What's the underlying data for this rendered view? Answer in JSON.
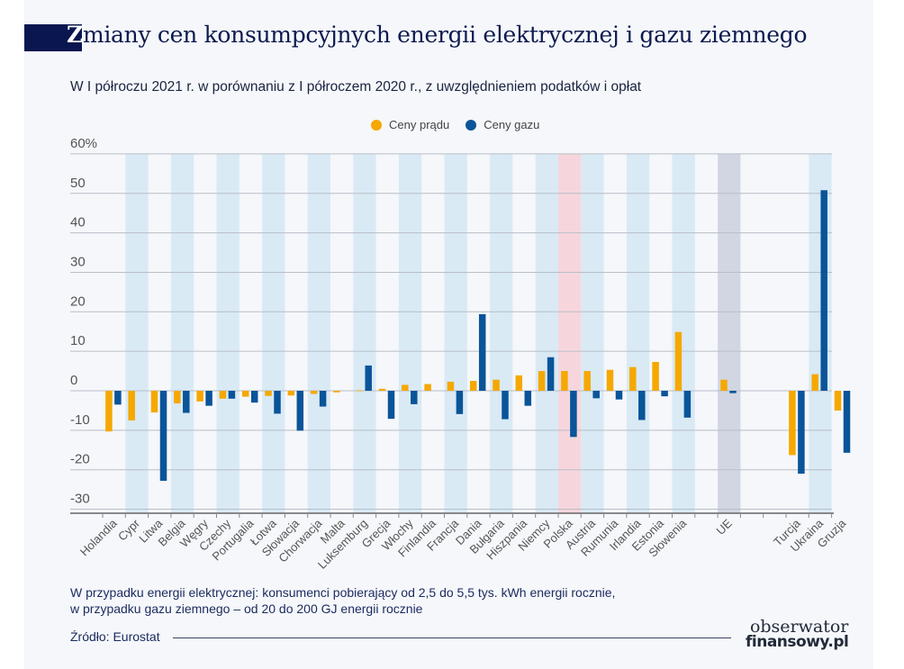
{
  "header": {
    "title_first_letter": "Z",
    "title_rest": "miany cen konsumpcyjnych energii elektrycznej i gazu ziemnego",
    "subtitle": "W I półroczu 2021 r. w porównaniu z I półroczem 2020 r., z uwzględnieniem podatków i opłat"
  },
  "footer": {
    "note_line1": "W przypadku energii elektrycznej: konsumenci pobierający od 2,5 do 5,5 tys. kWh energii rocznie,",
    "note_line2": "w przypadku gazu ziemnego – od 20 do 200 GJ energii rocznie",
    "source": "Źródło: Eurostat",
    "logo_line1": "obserwator",
    "logo_line2": "finansowy.pl"
  },
  "chart_data": {
    "type": "bar",
    "title": "Zmiany cen konsumpcyjnych energii elektrycznej i gazu ziemnego",
    "subtitle": "W I półroczu 2021 r. w porównaniu z I półroczem 2020 r., z uwzględnieniem podatków i opłat",
    "legend_position": "top-center",
    "grid": true,
    "ylim": [
      -30,
      60
    ],
    "yticks": [
      -30,
      -20,
      -10,
      0,
      10,
      20,
      30,
      40,
      50,
      60
    ],
    "ytick_labels": [
      "-30",
      "-20",
      "-10",
      "0",
      "10",
      "20",
      "30",
      "40",
      "50",
      "60%"
    ],
    "categories": [
      "Holandia",
      "Cypr",
      "Litwa",
      "Belgia",
      "Węgry",
      "Czechy",
      "Portugalia",
      "Łotwa",
      "Słowacja",
      "Chorwacja",
      "Malta",
      "Luksemburg",
      "Grecja",
      "Włochy",
      "Finlandia",
      "Francja",
      "Dania",
      "Bułgaria",
      "Hiszpania",
      "Niemcy",
      "Polska",
      "Austria",
      "Rumunia",
      "Irlandia",
      "Estonia",
      "Słowenia",
      "UE",
      "Turcja",
      "Ukraina",
      "Gruzja"
    ],
    "series": [
      {
        "name": "Ceny prądu",
        "color": "#f5a800",
        "values": [
          -10.3,
          -7.5,
          -5.5,
          -3.2,
          -2.7,
          -2.0,
          -1.5,
          -1.3,
          -1.2,
          -0.8,
          -0.4,
          0.1,
          0.5,
          1.5,
          1.7,
          2.3,
          2.5,
          2.8,
          3.9,
          5.0,
          5.0,
          5.0,
          5.3,
          6.0,
          7.3,
          14.9,
          2.8,
          -16.3,
          4.2,
          -5.0
        ]
      },
      {
        "name": "Ceny gazu",
        "color": "#0a5499",
        "values": [
          -3.5,
          null,
          -22.8,
          -5.6,
          -3.8,
          -2.0,
          -3.0,
          -5.8,
          -10.1,
          -4.0,
          null,
          6.4,
          -7.1,
          -3.4,
          null,
          -5.9,
          19.4,
          -7.2,
          -3.8,
          8.5,
          -11.7,
          -1.9,
          -2.2,
          -7.4,
          -1.4,
          -6.8,
          -0.6,
          -21.0,
          50.8,
          -15.7
        ]
      }
    ],
    "highlight": {
      "Polska": "#f6d6dc",
      "UE": "#d2d6e2"
    },
    "stripe_color": "#d9eaf5"
  }
}
